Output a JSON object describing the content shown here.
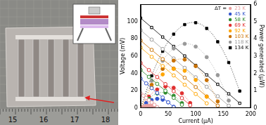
{
  "chart_data": {
    "type": "scatter",
    "x_label": "Current (μA)",
    "y_label": "Voltage (mV)",
    "y2_label": "Power generated (μW)",
    "legend_title": "ΔT =",
    "legend": "upper right",
    "grid": false,
    "xlim": [
      0,
      200
    ],
    "xticks": [
      0,
      50,
      100,
      150,
      200
    ],
    "ylim": [
      0,
      120
    ],
    "yticks": [
      0,
      20,
      40,
      60,
      80,
      100
    ],
    "y2lim": [
      0,
      6
    ],
    "y2ticks": [
      0,
      1,
      2,
      3,
      4,
      5,
      6
    ],
    "series": [
      {
        "name": "23 K",
        "color": "#e8a0a0",
        "marker": "circle",
        "line_style": "solid",
        "x": [
          0,
          5,
          10,
          15,
          20,
          25,
          30
        ],
        "values": [
          17,
          14.3,
          11.7,
          9.0,
          6.4,
          3.7,
          1.1
        ],
        "power": [
          0,
          0.07,
          0.12,
          0.14,
          0.13,
          0.09,
          0.03
        ]
      },
      {
        "name": "45 K",
        "color": "#3355cc",
        "marker": "circle",
        "line_style": "solid",
        "x": [
          0,
          10,
          20,
          30,
          40,
          50,
          60
        ],
        "values": [
          34,
          28.5,
          23.0,
          17.5,
          12.1,
          6.6,
          1.1
        ],
        "power": [
          0,
          0.29,
          0.46,
          0.53,
          0.48,
          0.33,
          0.07
        ]
      },
      {
        "name": "58 K",
        "color": "#2e8b2e",
        "marker": "circle",
        "line_style": "solid",
        "x": [
          0,
          15,
          30,
          45,
          60,
          75
        ],
        "values": [
          44,
          36.0,
          27.9,
          19.9,
          11.8,
          3.8
        ],
        "power": [
          0,
          0.54,
          0.84,
          0.89,
          0.71,
          0.28
        ]
      },
      {
        "name": "69 K",
        "color": "#e03030",
        "marker": "circle",
        "line_style": "solid",
        "x": [
          0,
          15,
          30,
          45,
          60,
          75,
          90
        ],
        "values": [
          52,
          43.9,
          35.8,
          27.6,
          19.5,
          11.4,
          3.25
        ],
        "power": [
          0,
          0.66,
          1.07,
          1.24,
          1.17,
          0.85,
          0.29
        ]
      },
      {
        "name": "92 K",
        "color": "#ffa500",
        "marker": "circle",
        "line_style": "solid",
        "x": [
          0,
          20,
          40,
          60,
          80,
          100,
          120
        ],
        "values": [
          70,
          59.2,
          48.5,
          37.7,
          26.9,
          16.2,
          5.4
        ],
        "power": [
          0,
          1.18,
          1.94,
          2.26,
          2.15,
          1.62,
          0.65
        ]
      },
      {
        "name": "103 K",
        "color": "#c87000",
        "marker": "circle",
        "line_style": "solid",
        "x": [
          0,
          20,
          40,
          60,
          80,
          100,
          120,
          140
        ],
        "values": [
          78,
          67.2,
          56.5,
          45.7,
          35.0,
          24.2,
          13.4,
          2.7
        ],
        "power": [
          0,
          1.34,
          2.26,
          2.74,
          2.8,
          2.42,
          1.61,
          0.38
        ]
      },
      {
        "name": "118 K",
        "color": "#999999",
        "marker": "circle",
        "line_style": "solid",
        "x": [
          0,
          20,
          40,
          60,
          80,
          100,
          120,
          140,
          160
        ],
        "values": [
          90,
          79.1,
          68.2,
          57.3,
          46.4,
          35.5,
          24.5,
          13.6,
          2.7
        ],
        "power": [
          0,
          1.58,
          2.73,
          3.44,
          3.71,
          3.55,
          2.94,
          1.9,
          0.43
        ]
      },
      {
        "name": "134 K",
        "color": "#000000",
        "marker": "square",
        "line_style": "solid",
        "x": [
          0,
          20,
          40,
          60,
          80,
          100,
          120,
          140,
          160,
          180
        ],
        "values": [
          104,
          93.1,
          82.1,
          71.2,
          60.2,
          49.3,
          38.3,
          27.4,
          16.4,
          5.5
        ],
        "power": [
          0,
          1.86,
          3.28,
          4.27,
          4.82,
          4.93,
          4.6,
          3.83,
          2.63,
          0.98
        ]
      }
    ]
  },
  "photo": {
    "ruler_labels": [
      "15",
      "16",
      "17",
      "18"
    ]
  }
}
